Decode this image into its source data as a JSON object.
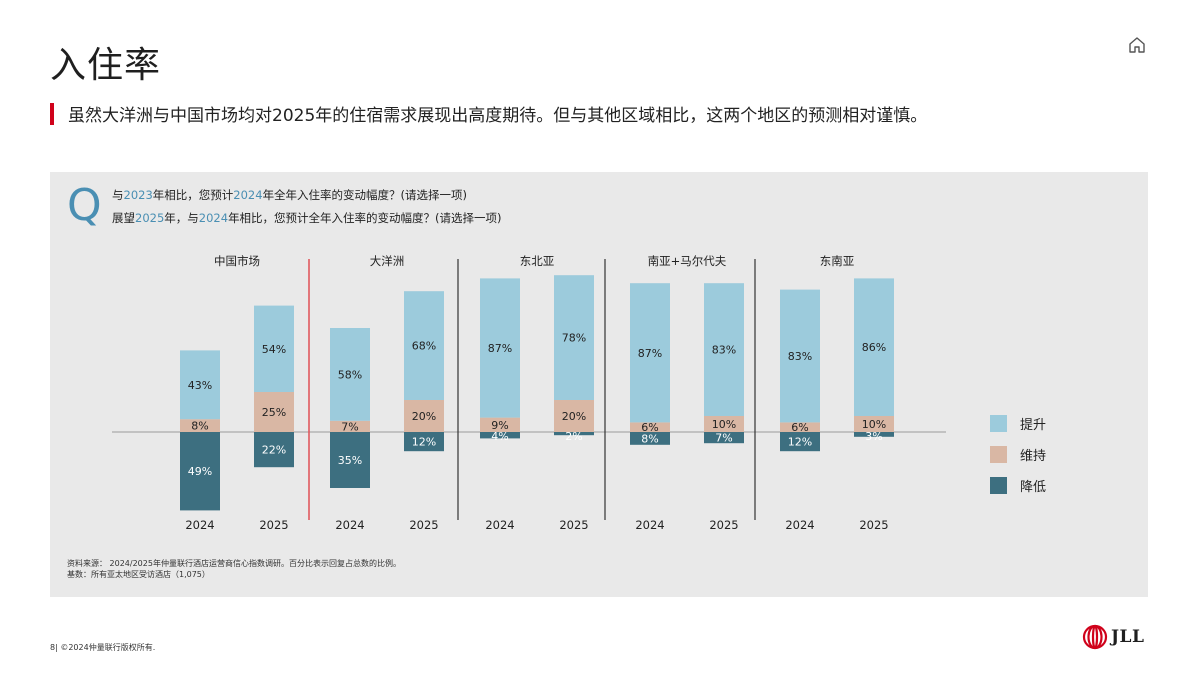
{
  "page": {
    "title": "入住率",
    "subtitle": "虽然大洋洲与中国市场均对2025年的住宿需求展现出高度期待。但与其他区域相比，这两个地区的预测相对谨慎。",
    "icon": "home-icon",
    "page_number": "8|",
    "copyright": "©2024仲量联行版权所有.",
    "logo_text": "JLL"
  },
  "question": {
    "letter": "Q",
    "line1": [
      {
        "text": "与",
        "hl": false
      },
      {
        "text": "2023",
        "hl": true
      },
      {
        "text": "年相比，您预计",
        "hl": false
      },
      {
        "text": "2024",
        "hl": true
      },
      {
        "text": "年全年入住率的变动幅度？(请选择一项)",
        "hl": false
      }
    ],
    "line2": [
      {
        "text": "展望",
        "hl": false
      },
      {
        "text": "2025",
        "hl": true
      },
      {
        "text": "年，与",
        "hl": false
      },
      {
        "text": "2024",
        "hl": true
      },
      {
        "text": "年相比，您预计全年入住率的变动幅度？(请选择一项)",
        "hl": false
      }
    ]
  },
  "source": {
    "line1": "资料来源： 2024/2025年仲量联行酒店运营商信心指数调研。百分比表示回复占总数的比例。",
    "line2": "基数：所有亚太地区受访酒店（1,075）"
  },
  "colors": {
    "increase": "#9ccbdc",
    "maintain": "#d9b7a4",
    "decrease": "#3d6f80",
    "divider_red": "#e05a5f",
    "divider_dark": "#333333",
    "accent": "#4a8fb3"
  },
  "chart_data": {
    "type": "bar",
    "stacked": true,
    "diverging": true,
    "groups": [
      "中国市场",
      "大洋洲",
      "东北亚",
      "南亚+马尔代夫",
      "东南亚"
    ],
    "categories": [
      "2024",
      "2025"
    ],
    "series": [
      {
        "name": "提升",
        "values": [
          [
            43,
            54
          ],
          [
            58,
            68
          ],
          [
            87,
            78
          ],
          [
            87,
            83
          ],
          [
            83,
            86
          ]
        ]
      },
      {
        "name": "维持",
        "values": [
          [
            8,
            25
          ],
          [
            7,
            20
          ],
          [
            9,
            20
          ],
          [
            6,
            10
          ],
          [
            6,
            10
          ]
        ]
      },
      {
        "name": "降低",
        "values": [
          [
            49,
            22
          ],
          [
            35,
            12
          ],
          [
            4,
            2
          ],
          [
            8,
            7
          ],
          [
            12,
            3
          ]
        ]
      }
    ],
    "bar_labels": [
      {
        "up": "43%",
        "mid": "8%",
        "down": "49%"
      },
      {
        "up": "54%",
        "mid": "25%",
        "down": "22%"
      },
      {
        "up": "58%",
        "mid": "7%",
        "down": "35%"
      },
      {
        "up": "68%",
        "mid": "20%",
        "down": "12%"
      },
      {
        "up": "87%",
        "mid": "9%",
        "down": "4%"
      },
      {
        "up": "78%",
        "mid": "20%",
        "down": "2%"
      },
      {
        "up": "87%",
        "mid": "6%",
        "down": "8%"
      },
      {
        "up": "83%",
        "mid": "10%",
        "down": "7%"
      },
      {
        "up": "83%",
        "mid": "6%",
        "down": "12%"
      },
      {
        "up": "86%",
        "mid": "10%",
        "down": "3%"
      }
    ],
    "legend": [
      "提升",
      "维持",
      "降低"
    ],
    "legend_position": "right",
    "grid": false
  }
}
